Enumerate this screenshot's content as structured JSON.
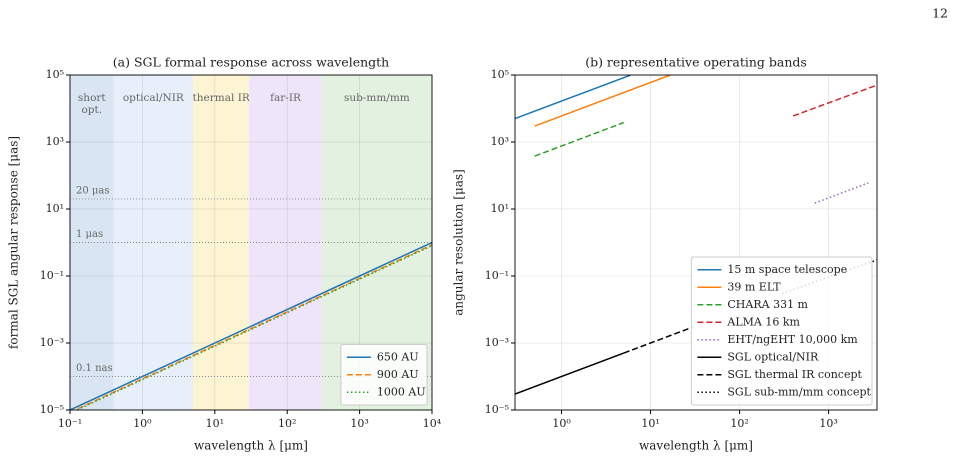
{
  "page_number": "12",
  "chart_data": [
    {
      "type": "line",
      "title": "(a) SGL formal response across wavelength",
      "xlabel": "wavelength λ [μm]",
      "ylabel": "formal SGL angular response [μas]",
      "xscale": "log",
      "yscale": "log",
      "xlim": [
        0.1,
        10000
      ],
      "ylim": [
        1e-05,
        100000
      ],
      "xticks": [
        {
          "value": 0.1,
          "label": "10⁻¹"
        },
        {
          "value": 1,
          "label": "10⁰"
        },
        {
          "value": 10,
          "label": "10¹"
        },
        {
          "value": 100,
          "label": "10²"
        },
        {
          "value": 1000,
          "label": "10³"
        },
        {
          "value": 10000,
          "label": "10⁴"
        }
      ],
      "yticks": [
        {
          "value": 1e-05,
          "label": "10⁻⁵"
        },
        {
          "value": 0.001,
          "label": "10⁻³"
        },
        {
          "value": 0.1,
          "label": "10⁻¹"
        },
        {
          "value": 10,
          "label": "10¹"
        },
        {
          "value": 1000,
          "label": "10³"
        },
        {
          "value": 100000,
          "label": "10⁵"
        }
      ],
      "grid": true,
      "legend": "lower right",
      "bands": [
        {
          "label": [
            "short",
            "opt."
          ],
          "range": [
            0.1,
            0.4
          ],
          "color": "#d9e5f3"
        },
        {
          "label": [
            "optical/NIR"
          ],
          "range": [
            0.4,
            5
          ],
          "color": "#e7effb"
        },
        {
          "label": [
            "thermal IR"
          ],
          "range": [
            5,
            30
          ],
          "color": "#fdf4d3"
        },
        {
          "label": [
            "far-IR"
          ],
          "range": [
            30,
            300
          ],
          "color": "#efe5fb"
        },
        {
          "label": [
            "sub-mm/mm"
          ],
          "range": [
            300,
            10000
          ],
          "color": "#e3f1e1"
        }
      ],
      "hlines": [
        {
          "value": 20,
          "label": "20 μas"
        },
        {
          "value": 1,
          "label": "1 μas"
        },
        {
          "value": 0.0001,
          "label": "0.1 nas"
        }
      ],
      "series": [
        {
          "name": "650 AU",
          "color": "#1f77b4",
          "dash": "solid",
          "x": [
            0.1,
            10000
          ],
          "values": [
            1e-05,
            1
          ]
        },
        {
          "name": "900 AU",
          "color": "#ff7f0e",
          "dash": "dashed",
          "x": [
            0.1,
            10000
          ],
          "values": [
            8.5e-06,
            0.85
          ]
        },
        {
          "name": "1000 AU",
          "color": "#2ca02c",
          "dash": "dotted",
          "x": [
            0.1,
            10000
          ],
          "values": [
            8.06e-06,
            0.806
          ]
        }
      ]
    },
    {
      "type": "line",
      "title": "(b) representative operating bands",
      "xlabel": "wavelength λ [μm]",
      "ylabel": "angular resolution [μas]",
      "xscale": "log",
      "yscale": "log",
      "xlim": [
        0.3,
        3500
      ],
      "ylim": [
        1e-05,
        100000
      ],
      "xticks": [
        {
          "value": 1,
          "label": "10⁰"
        },
        {
          "value": 10,
          "label": "10¹"
        },
        {
          "value": 100,
          "label": "10²"
        },
        {
          "value": 1000,
          "label": "10³"
        }
      ],
      "yticks": [
        {
          "value": 1e-05,
          "label": "10⁻⁵"
        },
        {
          "value": 0.001,
          "label": "10⁻³"
        },
        {
          "value": 0.1,
          "label": "10⁻¹"
        },
        {
          "value": 10,
          "label": "10¹"
        },
        {
          "value": 1000,
          "label": "10³"
        },
        {
          "value": 100000,
          "label": "10⁵"
        }
      ],
      "grid": true,
      "legend": "lower right",
      "series": [
        {
          "name": "15 m space telescope",
          "color": "#1f77b4",
          "dash": "solid",
          "x": [
            0.3,
            6
          ],
          "values": [
            5000,
            100000
          ]
        },
        {
          "name": "39 m ELT",
          "color": "#ff7f0e",
          "dash": "solid",
          "x": [
            0.5,
            16.7
          ],
          "values": [
            3000,
            100000
          ]
        },
        {
          "name": "CHARA 331 m",
          "color": "#2ca02c",
          "dash": "dashed",
          "x": [
            0.5,
            5
          ],
          "values": [
            380,
            3800
          ]
        },
        {
          "name": "ALMA 16 km",
          "color": "#d62728",
          "dash": "dashed",
          "x": [
            400,
            3500
          ],
          "values": [
            6000,
            50000
          ]
        },
        {
          "name": "EHT/ngEHT 10,000 km",
          "color": "#9467bd",
          "dash": "dotted",
          "x": [
            700,
            2800
          ],
          "values": [
            15,
            60
          ]
        },
        {
          "name": "SGL optical/NIR",
          "color": "#000000",
          "dash": "solid",
          "x": [
            0.3,
            5
          ],
          "values": [
            3e-05,
            0.0005
          ]
        },
        {
          "name": "SGL thermal IR concept",
          "color": "#000000",
          "dash": "dashed",
          "x": [
            5,
            30
          ],
          "values": [
            0.0005,
            0.003
          ]
        },
        {
          "name": "SGL sub-mm/mm concept",
          "color": "#000000",
          "dash": "dotted",
          "x": [
            300,
            3500
          ],
          "values": [
            0.03,
            0.3
          ]
        }
      ]
    }
  ]
}
